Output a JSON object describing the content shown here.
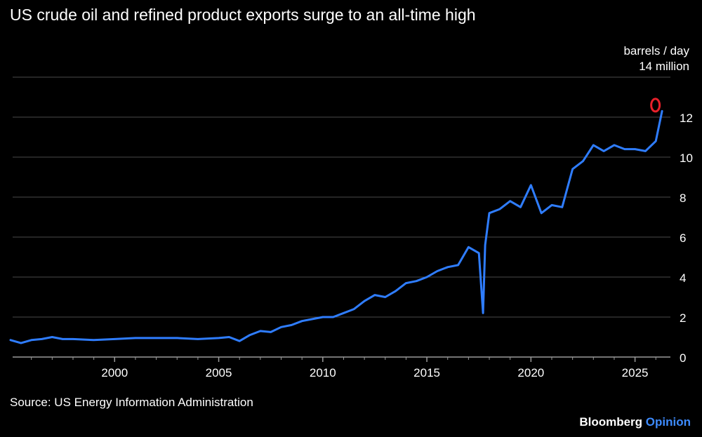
{
  "chart_data": {
    "type": "line",
    "title": "US crude oil and refined product exports surge to an all-time high",
    "unit_label": "barrels / day",
    "top_label": "14 million",
    "xlabel": "",
    "ylabel": "barrels / day",
    "xlim": [
      1995.1,
      2026.7
    ],
    "ylim": [
      0,
      14
    ],
    "y_ticks": [
      "0",
      "2",
      "4",
      "6",
      "8",
      "10",
      "12"
    ],
    "y_tick_values": [
      0,
      2,
      4,
      6,
      8,
      10,
      12
    ],
    "x_ticks": [
      "2000",
      "2005",
      "2010",
      "2015",
      "2020",
      "2025"
    ],
    "x_tick_values": [
      2000,
      2005,
      2010,
      2015,
      2020,
      2025
    ],
    "grid": true,
    "series": [
      {
        "name": "US crude oil and refined product exports",
        "color": "#2f7dff",
        "x": [
          1995.0,
          1995.5,
          1996.0,
          1996.5,
          1997.0,
          1997.5,
          1998.0,
          1999.0,
          2000.0,
          2001.0,
          2002.0,
          2003.0,
          2004.0,
          2005.0,
          2005.5,
          2006.0,
          2006.5,
          2007.0,
          2007.5,
          2008.0,
          2008.5,
          2009.0,
          2009.5,
          2010.0,
          2010.5,
          2011.0,
          2011.5,
          2012.0,
          2012.5,
          2013.0,
          2013.5,
          2014.0,
          2014.5,
          2015.0,
          2015.5,
          2016.0,
          2016.5,
          2017.0,
          2017.5,
          2017.7,
          2017.8,
          2018.0,
          2018.5,
          2019.0,
          2019.5,
          2020.0,
          2020.5,
          2021.0,
          2021.5,
          2022.0,
          2022.5,
          2023.0,
          2023.5,
          2024.0,
          2024.5,
          2025.0,
          2025.5,
          2026.0,
          2026.3
        ],
        "values": [
          0.85,
          0.7,
          0.85,
          0.9,
          1.0,
          0.9,
          0.9,
          0.85,
          0.9,
          0.95,
          0.95,
          0.95,
          0.9,
          0.95,
          1.0,
          0.8,
          1.1,
          1.3,
          1.25,
          1.5,
          1.6,
          1.8,
          1.9,
          2.0,
          2.0,
          2.2,
          2.4,
          2.8,
          3.1,
          3.0,
          3.3,
          3.7,
          3.8,
          4.0,
          4.3,
          4.5,
          4.6,
          5.5,
          5.2,
          2.2,
          5.6,
          7.2,
          7.4,
          7.8,
          7.5,
          8.6,
          7.2,
          7.6,
          7.5,
          9.4,
          9.8,
          10.6,
          10.3,
          10.6,
          10.4,
          10.4,
          10.3,
          10.8,
          12.3
        ]
      }
    ],
    "annotation": {
      "label": "all-time high marker",
      "x": 2025.98,
      "y": 12.6,
      "color": "#e8202a"
    }
  },
  "footer": {
    "source": "Source: US Energy Information Administration",
    "brand_primary": "Bloomberg",
    "brand_secondary": "Opinion"
  }
}
